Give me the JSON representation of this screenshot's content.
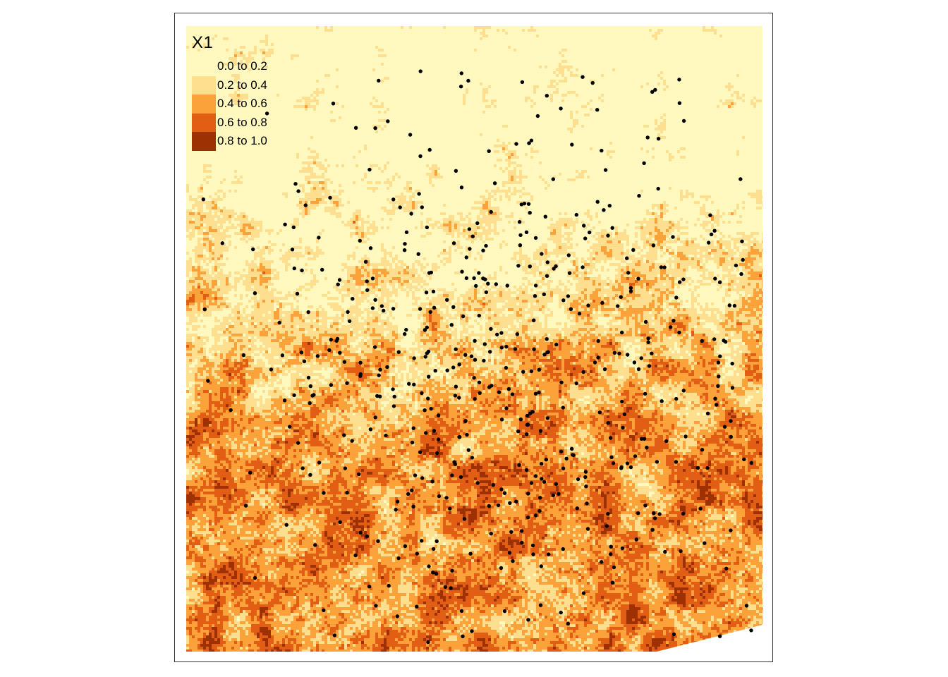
{
  "map": {
    "legend": {
      "title": "X1",
      "classes": [
        {
          "label": "0.0 to 0.2",
          "color": "#FFF9C0"
        },
        {
          "label": "0.2 to 0.4",
          "color": "#FEDE8F"
        },
        {
          "label": "0.4 to 0.6",
          "color": "#FBA33A"
        },
        {
          "label": "0.6 to 0.8",
          "color": "#E15E14"
        },
        {
          "label": "0.8 to 1.0",
          "color": "#9E3104"
        }
      ]
    },
    "layers": [
      "raster",
      "points"
    ],
    "point_color": "#000000"
  }
}
